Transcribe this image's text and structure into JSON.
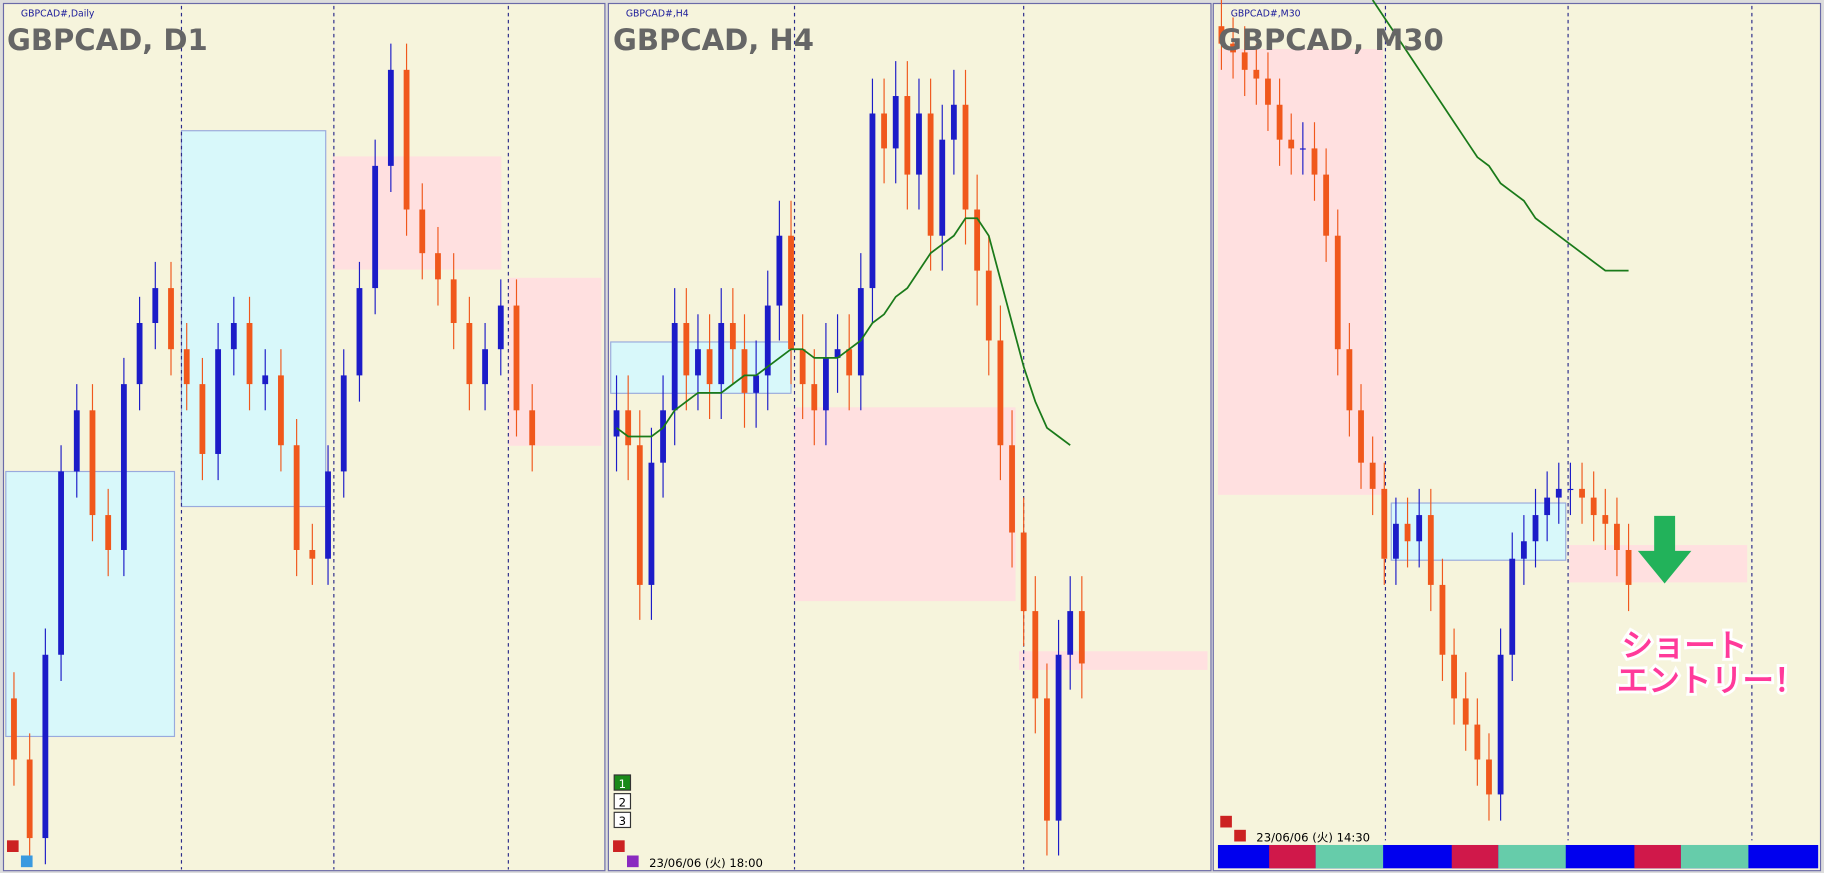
{
  "ylim": [
    0,
    100
  ],
  "colors": {
    "up": "#1c1cc8",
    "down": "#f0581c",
    "ma": "#1a7a1a"
  },
  "panels": [
    {
      "label": "GBPCAD#,Daily",
      "title": "GBPCAD, D1",
      "candles": {
        "open": [
          20,
          13,
          4,
          25,
          46,
          53,
          41,
          37,
          56,
          63,
          67,
          60,
          56,
          48,
          60,
          63,
          56,
          57,
          49,
          37,
          36,
          46,
          57,
          67,
          81,
          92,
          76,
          71,
          68,
          63,
          56,
          60,
          65,
          53
        ],
        "high": [
          23,
          16,
          28,
          49,
          56,
          56,
          44,
          59,
          66,
          70,
          70,
          63,
          59,
          63,
          66,
          66,
          60,
          60,
          52,
          40,
          49,
          60,
          70,
          84,
          95,
          95,
          79,
          74,
          71,
          66,
          63,
          68,
          68,
          56
        ],
        "low": [
          10,
          1,
          1,
          22,
          43,
          38,
          34,
          34,
          53,
          60,
          57,
          53,
          45,
          45,
          57,
          53,
          53,
          46,
          34,
          33,
          33,
          43,
          54,
          64,
          78,
          73,
          68,
          65,
          60,
          53,
          53,
          57,
          50,
          46
        ],
        "close": [
          13,
          4,
          25,
          46,
          53,
          41,
          37,
          56,
          63,
          67,
          60,
          56,
          48,
          60,
          63,
          56,
          57,
          49,
          37,
          36,
          46,
          57,
          67,
          81,
          92,
          76,
          71,
          68,
          63,
          56,
          60,
          65,
          53,
          49
        ]
      }
    },
    {
      "label": "GBPCAD#,H4",
      "title": "GBPCAD, H4",
      "date": "23/06/06 (火) 18:00",
      "candles": {
        "open": [
          50,
          53,
          49,
          33,
          47,
          53,
          63,
          57,
          60,
          56,
          63,
          60,
          55,
          57,
          65,
          73,
          60,
          56,
          53,
          59,
          60,
          57,
          67,
          87,
          83,
          89,
          80,
          87,
          73,
          84,
          88,
          76,
          69,
          61,
          49,
          39,
          30,
          20,
          6,
          25,
          30
        ],
        "high": [
          57,
          57,
          53,
          51,
          57,
          67,
          67,
          64,
          64,
          67,
          67,
          64,
          61,
          69,
          77,
          77,
          64,
          60,
          63,
          64,
          64,
          71,
          91,
          91,
          93,
          93,
          91,
          91,
          88,
          92,
          92,
          80,
          73,
          65,
          53,
          43,
          34,
          24,
          29,
          34,
          34
        ],
        "low": [
          46,
          45,
          29,
          29,
          43,
          49,
          53,
          53,
          52,
          52,
          56,
          51,
          51,
          53,
          61,
          56,
          52,
          49,
          49,
          55,
          53,
          53,
          63,
          79,
          79,
          76,
          76,
          69,
          69,
          80,
          72,
          65,
          57,
          45,
          35,
          26,
          16,
          2,
          2,
          21,
          20
        ],
        "close": [
          53,
          49,
          33,
          47,
          53,
          63,
          57,
          60,
          56,
          63,
          60,
          55,
          57,
          65,
          73,
          60,
          56,
          53,
          59,
          60,
          57,
          67,
          87,
          83,
          89,
          80,
          87,
          73,
          84,
          88,
          76,
          69,
          61,
          49,
          39,
          30,
          20,
          6,
          25,
          30,
          24
        ]
      },
      "ma": [
        51,
        50,
        50,
        50,
        51,
        53,
        54,
        55,
        55,
        55,
        56,
        57,
        57,
        58,
        59,
        60,
        60,
        59,
        59,
        59,
        60,
        61,
        63,
        64,
        66,
        67,
        69,
        71,
        72,
        73,
        75,
        75,
        73,
        68,
        63,
        58,
        54,
        51,
        50,
        49,
        null
      ]
    },
    {
      "label": "GBPCAD#,M30",
      "title": "GBPCAD, M30",
      "date": "23/06/06 (火) 14:30",
      "candles": {
        "open": [
          97,
          95,
          94,
          92,
          91,
          88,
          84,
          83,
          83,
          80,
          73,
          60,
          53,
          47,
          44,
          36,
          40,
          38,
          41,
          33,
          25,
          20,
          17,
          13,
          9,
          25,
          36,
          38,
          41,
          43,
          44,
          44,
          43,
          41,
          40,
          37
        ],
        "high": [
          100,
          98,
          97,
          95,
          94,
          91,
          87,
          86,
          86,
          83,
          76,
          63,
          56,
          50,
          47,
          43,
          43,
          44,
          44,
          36,
          28,
          23,
          20,
          16,
          28,
          39,
          41,
          44,
          46,
          47,
          47,
          47,
          46,
          44,
          43,
          40
        ],
        "low": [
          92,
          91,
          89,
          88,
          85,
          81,
          80,
          80,
          77,
          70,
          57,
          50,
          44,
          41,
          33,
          33,
          35,
          35,
          30,
          22,
          17,
          14,
          10,
          6,
          6,
          22,
          33,
          35,
          38,
          40,
          41,
          40,
          38,
          37,
          34,
          30
        ],
        "close": [
          95,
          94,
          92,
          91,
          88,
          84,
          83,
          83,
          80,
          73,
          60,
          53,
          47,
          44,
          36,
          40,
          38,
          41,
          33,
          25,
          20,
          17,
          13,
          9,
          25,
          36,
          38,
          41,
          43,
          44,
          44,
          43,
          41,
          40,
          37,
          33
        ]
      },
      "ma": [
        null,
        null,
        null,
        null,
        null,
        null,
        null,
        null,
        null,
        null,
        null,
        null,
        null,
        100,
        98,
        96,
        94,
        92,
        90,
        88,
        86,
        84,
        82,
        81,
        79,
        78,
        77,
        75,
        74,
        73,
        72,
        71,
        70,
        69,
        69,
        69
      ]
    }
  ],
  "buttons": [
    "1",
    "2",
    "3"
  ],
  "annotation": [
    "ショート",
    "エントリー！"
  ]
}
